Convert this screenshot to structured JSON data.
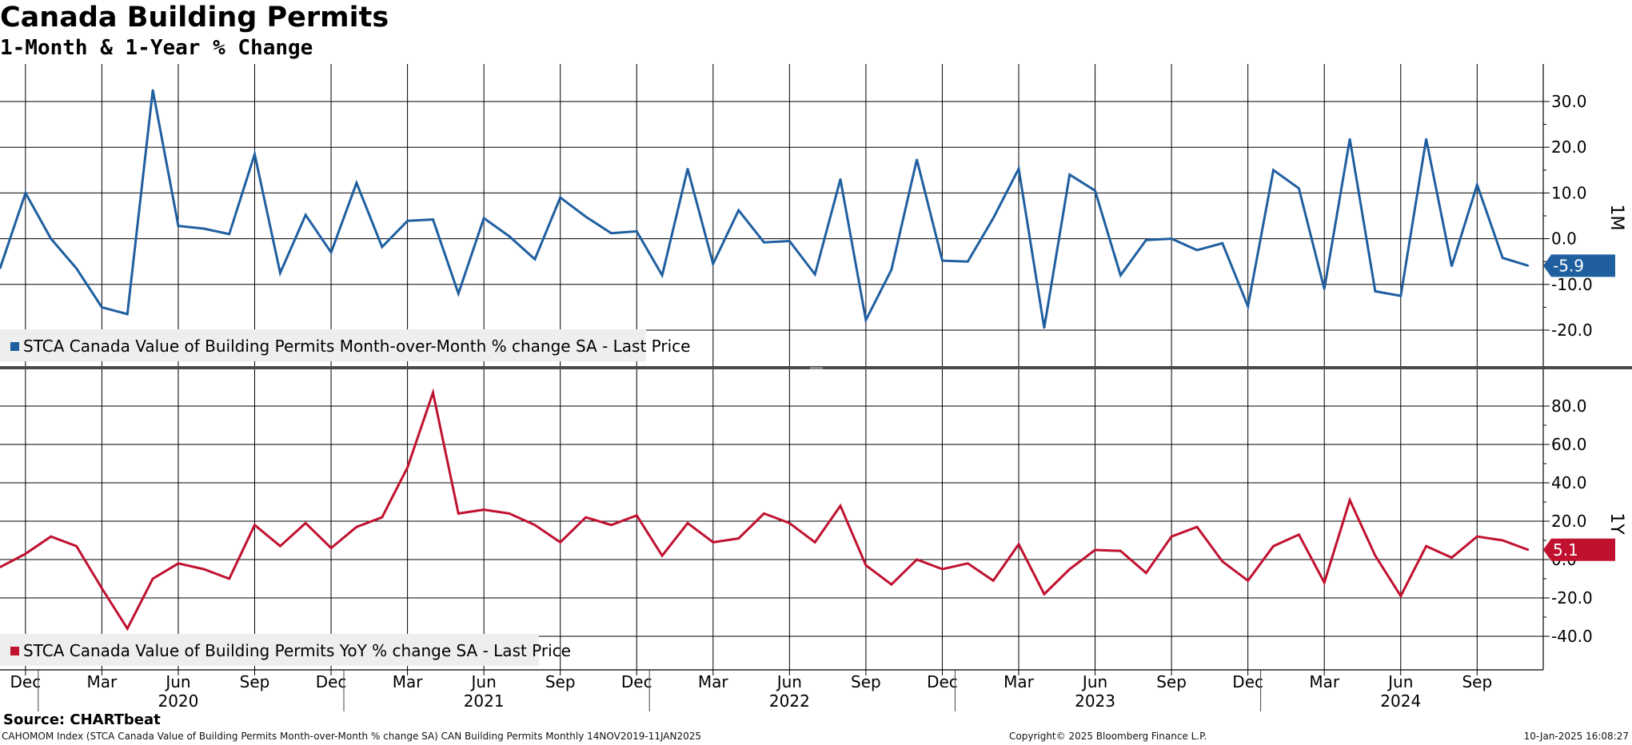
{
  "title": "Canada Building Permits",
  "subtitle": "1-Month & 1-Year % Change",
  "source": "Source: CHARTbeat",
  "footer": {
    "left": "CAHOMOM Index (STCA Canada Value of Building Permits Month-over-Month % change SA) CAN Building Permits  Monthly 14NOV2019-11JAN2025",
    "center": "Copyright© 2025 Bloomberg Finance L.P.",
    "right": "10-Jan-2025 16:08:27"
  },
  "colors": {
    "mom": "#1f5fa0",
    "yoy": "#c0112f",
    "grid": "#000000",
    "divider": "#4a4a4a",
    "legend_bg": "#eeeeee"
  },
  "chart_data": [
    {
      "type": "line",
      "panel": "1M",
      "axis_label": "1M",
      "legend": "STCA Canada Value of Building Permits Month-over-Month % change SA - Last Price",
      "last_value_label": "-5.9",
      "ylim": [
        -25,
        38
      ],
      "yticks": [
        30,
        20,
        10,
        0,
        -10,
        -20
      ],
      "ytick_labels": [
        "30.0",
        "20.0",
        "10.0",
        "0.0",
        "-10.0",
        "-20.0"
      ],
      "x": [
        "2019-11",
        "2019-12",
        "2020-01",
        "2020-02",
        "2020-03",
        "2020-04",
        "2020-05",
        "2020-06",
        "2020-07",
        "2020-08",
        "2020-09",
        "2020-10",
        "2020-11",
        "2020-12",
        "2021-01",
        "2021-02",
        "2021-03",
        "2021-04",
        "2021-05",
        "2021-06",
        "2021-07",
        "2021-08",
        "2021-09",
        "2021-10",
        "2021-11",
        "2021-12",
        "2022-01",
        "2022-02",
        "2022-03",
        "2022-04",
        "2022-05",
        "2022-06",
        "2022-07",
        "2022-08",
        "2022-09",
        "2022-10",
        "2022-11",
        "2022-12",
        "2023-01",
        "2023-02",
        "2023-03",
        "2023-04",
        "2023-05",
        "2023-06",
        "2023-07",
        "2023-08",
        "2023-09",
        "2023-10",
        "2023-11",
        "2023-12",
        "2024-01",
        "2024-02",
        "2024-03",
        "2024-04",
        "2024-05",
        "2024-06",
        "2024-07",
        "2024-08",
        "2024-09",
        "2024-10",
        "2024-11"
      ],
      "values": [
        -6.5,
        10,
        0,
        -6.5,
        -15,
        -16.5,
        32.5,
        2.8,
        2.2,
        1.0,
        18.5,
        -7.5,
        5.2,
        -3.0,
        12.2,
        -1.8,
        3.9,
        4.2,
        -12.0,
        4.5,
        0.5,
        -4.5,
        9.0,
        4.8,
        1.2,
        1.6,
        -8.0,
        15.3,
        -5.5,
        6.2,
        -0.8,
        -0.5,
        -7.8,
        13.0,
        -17.8,
        -6.8,
        17.3,
        -4.8,
        -5.0,
        4.5,
        15.3,
        -19.5,
        14.0,
        10.5,
        -8.0,
        -0.3,
        0.0,
        -2.5,
        -1.0,
        -14.8,
        15.0,
        11.0,
        -11.0,
        21.8,
        -11.5,
        -12.5,
        21.8,
        -6.0,
        11.8,
        -4.2,
        -5.9
      ]
    },
    {
      "type": "line",
      "panel": "1Y",
      "axis_label": "1Y",
      "legend": "STCA Canada Value of Building Permits YoY % change SA - Last Price",
      "last_value_label": "5.1",
      "ylim": [
        -57,
        93
      ],
      "yticks": [
        80,
        60,
        40,
        20,
        0,
        -20,
        -40
      ],
      "ytick_labels": [
        "80.0",
        "60.0",
        "40.0",
        "20.0",
        "0.0",
        "-20.0",
        "-40.0"
      ],
      "x": [
        "2019-11",
        "2019-12",
        "2020-01",
        "2020-02",
        "2020-03",
        "2020-04",
        "2020-05",
        "2020-06",
        "2020-07",
        "2020-08",
        "2020-09",
        "2020-10",
        "2020-11",
        "2020-12",
        "2021-01",
        "2021-02",
        "2021-03",
        "2021-04",
        "2021-05",
        "2021-06",
        "2021-07",
        "2021-08",
        "2021-09",
        "2021-10",
        "2021-11",
        "2021-12",
        "2022-01",
        "2022-02",
        "2022-03",
        "2022-04",
        "2022-05",
        "2022-06",
        "2022-07",
        "2022-08",
        "2022-09",
        "2022-10",
        "2022-11",
        "2022-12",
        "2023-01",
        "2023-02",
        "2023-03",
        "2023-04",
        "2023-05",
        "2023-06",
        "2023-07",
        "2023-08",
        "2023-09",
        "2023-10",
        "2023-11",
        "2023-12",
        "2024-01",
        "2024-02",
        "2024-03",
        "2024-04",
        "2024-05",
        "2024-06",
        "2024-07",
        "2024-08",
        "2024-09",
        "2024-10",
        "2024-11"
      ],
      "values": [
        -4,
        3,
        12,
        7,
        -15,
        -36,
        -10,
        -2,
        -5,
        -10,
        18,
        7,
        19,
        6,
        17,
        22,
        48,
        87,
        24,
        26,
        24,
        18,
        9,
        22,
        18,
        23,
        2,
        19,
        9,
        11,
        24,
        19,
        9,
        28,
        -3,
        -13,
        0,
        -5,
        -2,
        -11,
        8,
        -18,
        -5,
        5,
        4.5,
        -7,
        12,
        17,
        -1,
        -11,
        7,
        13,
        -12,
        31,
        2,
        -19,
        7,
        1,
        12,
        10,
        5.1
      ]
    }
  ],
  "x_axis": {
    "month_labels": [
      {
        "date": "2019-12",
        "label": "Dec"
      },
      {
        "date": "2020-03",
        "label": "Mar"
      },
      {
        "date": "2020-06",
        "label": "Jun"
      },
      {
        "date": "2020-09",
        "label": "Sep"
      },
      {
        "date": "2020-12",
        "label": "Dec"
      },
      {
        "date": "2021-03",
        "label": "Mar"
      },
      {
        "date": "2021-06",
        "label": "Jun"
      },
      {
        "date": "2021-09",
        "label": "Sep"
      },
      {
        "date": "2021-12",
        "label": "Dec"
      },
      {
        "date": "2022-03",
        "label": "Mar"
      },
      {
        "date": "2022-06",
        "label": "Jun"
      },
      {
        "date": "2022-09",
        "label": "Sep"
      },
      {
        "date": "2022-12",
        "label": "Dec"
      },
      {
        "date": "2023-03",
        "label": "Mar"
      },
      {
        "date": "2023-06",
        "label": "Jun"
      },
      {
        "date": "2023-09",
        "label": "Sep"
      },
      {
        "date": "2023-12",
        "label": "Dec"
      },
      {
        "date": "2024-03",
        "label": "Mar"
      },
      {
        "date": "2024-06",
        "label": "Jun"
      },
      {
        "date": "2024-09",
        "label": "Sep"
      }
    ],
    "year_labels": [
      {
        "date": "2020-06",
        "label": "2020"
      },
      {
        "date": "2021-06",
        "label": "2021"
      },
      {
        "date": "2022-06",
        "label": "2022"
      },
      {
        "date": "2023-06",
        "label": "2023"
      },
      {
        "date": "2024-06",
        "label": "2024"
      }
    ]
  }
}
